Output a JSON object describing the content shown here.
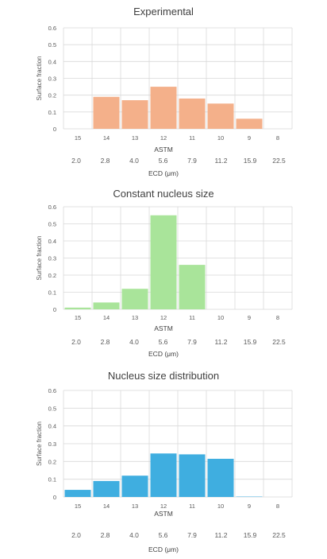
{
  "chart_data": [
    {
      "type": "bar",
      "title": "Experimental",
      "categories": [
        "15",
        "14",
        "13",
        "12",
        "11",
        "10",
        "9",
        "8"
      ],
      "values": [
        0,
        0.19,
        0.17,
        0.25,
        0.18,
        0.15,
        0.06,
        0
      ],
      "secondary_categories": [
        "2.0",
        "2.8",
        "4.0",
        "5.6",
        "7.9",
        "11.2",
        "15.9",
        "22.5"
      ],
      "xlabel": "ASTM",
      "x2label": "ECD (μm)",
      "ylabel": "Surface fraction",
      "ylim": [
        0,
        0.6
      ],
      "yticks": [
        "0",
        "0.1",
        "0.2",
        "0.3",
        "0.4",
        "0.5",
        "0.6"
      ],
      "color": "#F4B08A",
      "grid": true
    },
    {
      "type": "bar",
      "title": "Constant nucleus size",
      "categories": [
        "15",
        "14",
        "13",
        "12",
        "11",
        "10",
        "9",
        "8"
      ],
      "values": [
        0.01,
        0.04,
        0.12,
        0.55,
        0.26,
        0,
        0,
        0
      ],
      "secondary_categories": [
        "2.0",
        "2.8",
        "4.0",
        "5.6",
        "7.9",
        "11.2",
        "15.9",
        "22.5"
      ],
      "xlabel": "ASTM",
      "x2label": "ECD (μm)",
      "ylabel": "Surface fraction",
      "ylim": [
        0,
        0.6
      ],
      "yticks": [
        "0",
        "0.1",
        "0.2",
        "0.3",
        "0.4",
        "0.5",
        "0.6"
      ],
      "color": "#A9E49A",
      "grid": true
    },
    {
      "type": "bar",
      "title": "Nucleus size distribution",
      "categories": [
        "15",
        "14",
        "13",
        "12",
        "11",
        "10",
        "9",
        "8"
      ],
      "values": [
        0.04,
        0.09,
        0.12,
        0.245,
        0.24,
        0.215,
        0.002,
        0
      ],
      "secondary_categories": [
        "2.0",
        "2.8",
        "4.0",
        "5.6",
        "7.9",
        "11.2",
        "15.9",
        "22.5"
      ],
      "xlabel": "ASTM",
      "x2label": "ECD (μm)",
      "ylabel": "Surface fraction",
      "ylim": [
        0,
        0.6
      ],
      "yticks": [
        "0",
        "0.1",
        "0.2",
        "0.3",
        "0.4",
        "0.5",
        "0.6"
      ],
      "color": "#3FAEE0",
      "grid": true
    }
  ]
}
